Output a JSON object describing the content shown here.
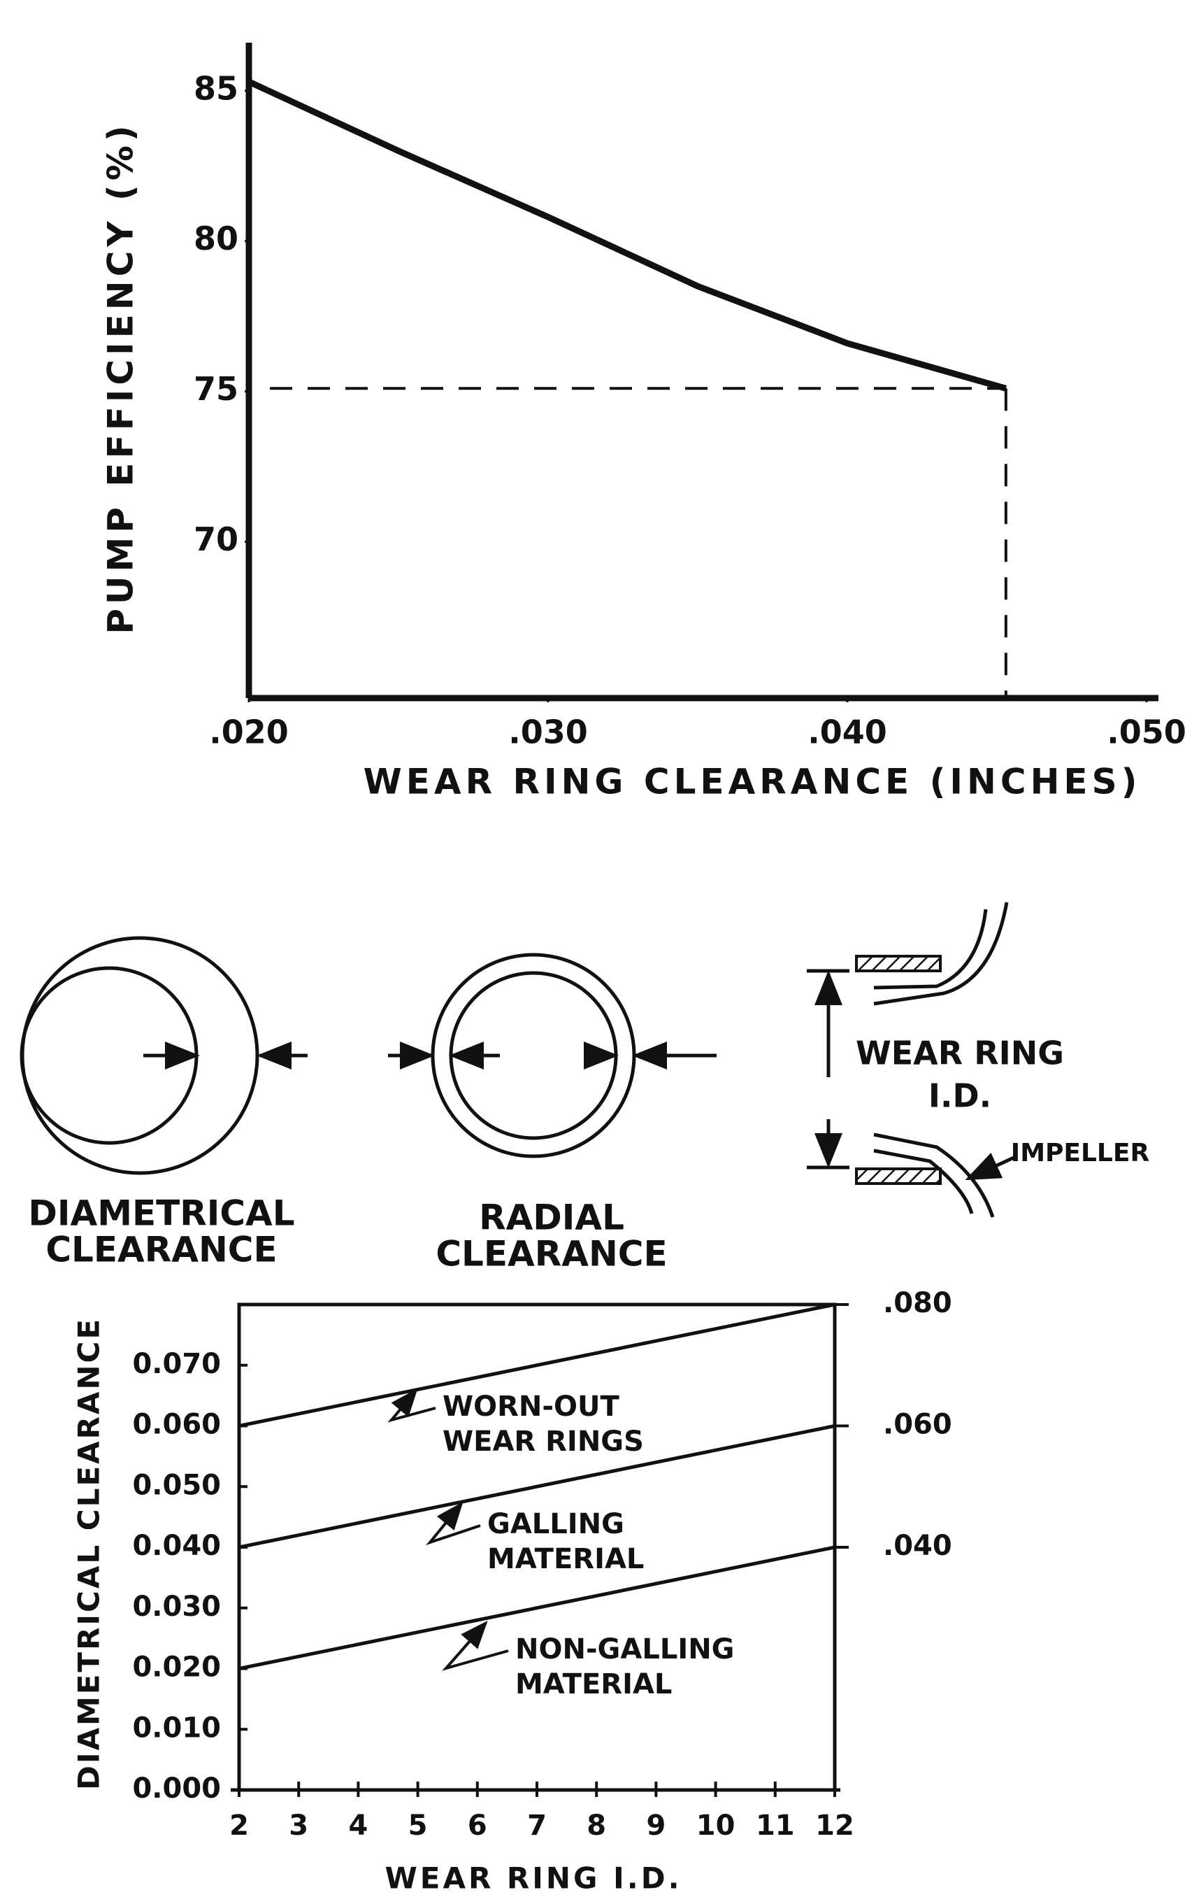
{
  "chart_data": [
    {
      "type": "line",
      "x": [
        0.02,
        0.025,
        0.03,
        0.035,
        0.04,
        0.0453
      ],
      "values": [
        85.3,
        83.0,
        80.8,
        78.5,
        76.6,
        75.1
      ],
      "color": "#111111",
      "xlim": [
        0.02,
        0.05
      ],
      "xticks": [
        {
          "value": 0.02,
          "label": ".020"
        },
        {
          "value": 0.03,
          "label": ".030"
        },
        {
          "value": 0.04,
          "label": ".040"
        },
        {
          "value": 0.05,
          "label": ".050"
        }
      ],
      "ylim": [
        64.8,
        86.6
      ],
      "yticks": [
        70,
        75,
        80,
        85
      ],
      "xlabel": "WEAR RING CLEARANCE (INCHES)",
      "ylabel": "PUMP EFFICIENCY (%)"
    },
    {
      "type": "line",
      "x": [
        2,
        12
      ],
      "series": [
        {
          "annotation": [
            "WORN-OUT",
            "WEAR RINGS"
          ],
          "color": "#111111",
          "values": [
            0.06,
            0.08
          ]
        },
        {
          "annotation": [
            "GALLING",
            "MATERIAL"
          ],
          "color": "#111111",
          "values": [
            0.04,
            0.06
          ]
        },
        {
          "annotation": [
            "NON-GALLING",
            "MATERIAL"
          ],
          "color": "#111111",
          "values": [
            0.02,
            0.04
          ]
        }
      ],
      "xlim": [
        2,
        12
      ],
      "xticks": [
        2,
        3,
        4,
        5,
        6,
        7,
        8,
        9,
        10,
        11,
        12
      ],
      "ylim": [
        0,
        0.08
      ],
      "yticks": [
        {
          "value": 0,
          "label": "0.000"
        },
        {
          "value": 0.01,
          "label": "0.010"
        },
        {
          "value": 0.02,
          "label": "0.020"
        },
        {
          "value": 0.03,
          "label": "0.030"
        },
        {
          "value": 0.04,
          "label": "0.040"
        },
        {
          "value": 0.05,
          "label": "0.050"
        },
        {
          "value": 0.06,
          "label": "0.060"
        },
        {
          "value": 0.07,
          "label": "0.070"
        }
      ],
      "y2lim": [
        0,
        0.08
      ],
      "y2ticks": [
        {
          "value": 0.08,
          "label": ".080"
        },
        {
          "value": 0.06,
          "label": ".060"
        },
        {
          "value": 0.04,
          "label": ".040"
        }
      ],
      "xlabel": "WEAR RING I.D.",
      "ylabel": "DIAMETRICAL CLEARANCE"
    }
  ],
  "diagram": {
    "diametrical": [
      "DIAMETRICAL",
      "CLEARANCE"
    ],
    "radial": [
      "RADIAL",
      "CLEARANCE"
    ],
    "wear_ring": [
      "WEAR RING",
      "I.D."
    ],
    "impeller": "IMPELLER"
  }
}
